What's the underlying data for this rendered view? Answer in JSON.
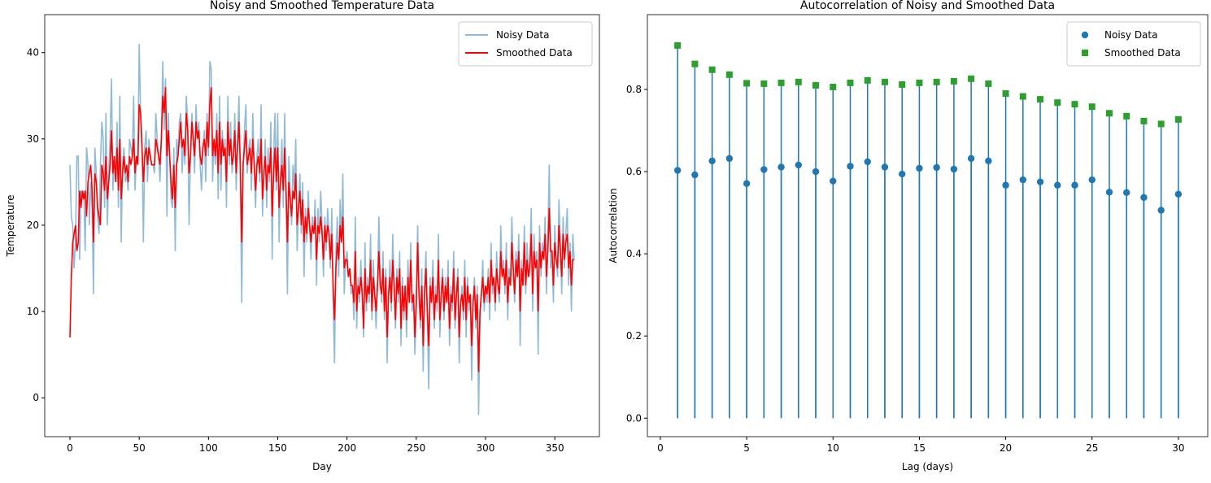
{
  "chart_data": [
    {
      "type": "line",
      "title": "Noisy and Smoothed Temperature Data",
      "x_label": "Day",
      "y_label": "Temperature",
      "x": [
        0,
        1,
        2,
        3,
        4,
        5,
        6,
        7,
        8,
        9,
        10,
        11,
        12,
        13,
        14,
        15,
        16,
        17,
        18,
        19,
        20,
        21,
        22,
        23,
        24,
        25,
        26,
        27,
        28,
        29,
        30,
        31,
        32,
        33,
        34,
        35,
        36,
        37,
        38,
        39,
        40,
        41,
        42,
        43,
        44,
        45,
        46,
        47,
        48,
        49,
        50,
        51,
        52,
        53,
        54,
        55,
        56,
        57,
        58,
        59,
        60,
        61,
        62,
        63,
        64,
        65,
        66,
        67,
        68,
        69,
        70,
        71,
        72,
        73,
        74,
        75,
        76,
        77,
        78,
        79,
        80,
        81,
        82,
        83,
        84,
        85,
        86,
        87,
        88,
        89,
        90,
        91,
        92,
        93,
        94,
        95,
        96,
        97,
        98,
        99,
        100,
        101,
        102,
        103,
        104,
        105,
        106,
        107,
        108,
        109,
        110,
        111,
        112,
        113,
        114,
        115,
        116,
        117,
        118,
        119,
        120,
        121,
        122,
        123,
        124,
        125,
        126,
        127,
        128,
        129,
        130,
        131,
        132,
        133,
        134,
        135,
        136,
        137,
        138,
        139,
        140,
        141,
        142,
        143,
        144,
        145,
        146,
        147,
        148,
        149,
        150,
        151,
        152,
        153,
        154,
        155,
        156,
        157,
        158,
        159,
        160,
        161,
        162,
        163,
        164,
        165,
        166,
        167,
        168,
        169,
        170,
        171,
        172,
        173,
        174,
        175,
        176,
        177,
        178,
        179,
        180,
        181,
        182,
        183,
        184,
        185,
        186,
        187,
        188,
        189,
        190,
        191,
        192,
        193,
        194,
        195,
        196,
        197,
        198,
        199,
        200,
        201,
        202,
        203,
        204,
        205,
        206,
        207,
        208,
        209,
        210,
        211,
        212,
        213,
        214,
        215,
        216,
        217,
        218,
        219,
        220,
        221,
        222,
        223,
        224,
        225,
        226,
        227,
        228,
        229,
        230,
        231,
        232,
        233,
        234,
        235,
        236,
        237,
        238,
        239,
        240,
        241,
        242,
        243,
        244,
        245,
        246,
        247,
        248,
        249,
        250,
        251,
        252,
        253,
        254,
        255,
        256,
        257,
        258,
        259,
        260,
        261,
        262,
        263,
        264,
        265,
        266,
        267,
        268,
        269,
        270,
        271,
        272,
        273,
        274,
        275,
        276,
        277,
        278,
        279,
        280,
        281,
        282,
        283,
        284,
        285,
        286,
        287,
        288,
        289,
        290,
        291,
        292,
        293,
        294,
        295,
        296,
        297,
        298,
        299,
        300,
        301,
        302,
        303,
        304,
        305,
        306,
        307,
        308,
        309,
        310,
        311,
        312,
        313,
        314,
        315,
        316,
        317,
        318,
        319,
        320,
        321,
        322,
        323,
        324,
        325,
        326,
        327,
        328,
        329,
        330,
        331,
        332,
        333,
        334,
        335,
        336,
        337,
        338,
        339,
        340,
        341,
        342,
        343,
        344,
        345,
        346,
        347,
        348,
        349,
        350,
        351,
        352,
        353,
        354,
        355,
        356,
        357,
        358,
        359,
        360,
        361,
        362,
        363,
        364
      ],
      "series": [
        {
          "name": "Noisy Data",
          "color": "#8fbbd9",
          "values": [
            27,
            21,
            20,
            15,
            18,
            28,
            28,
            16,
            24,
            23,
            24,
            17,
            29,
            27,
            20,
            25,
            22,
            12,
            29,
            26,
            21,
            19,
            27,
            32,
            30,
            22,
            33,
            20,
            26,
            30,
            37,
            24,
            28,
            25,
            32,
            22,
            35,
            18,
            27,
            29,
            25,
            26,
            24,
            30,
            29,
            28,
            35,
            24,
            28,
            27,
            41,
            33,
            30,
            18,
            29,
            31,
            25,
            30,
            28,
            27,
            27,
            26,
            33,
            30,
            28,
            25,
            30,
            39,
            31,
            37,
            21,
            33,
            28,
            23,
            22,
            29,
            17,
            30,
            28,
            32,
            33,
            26,
            30,
            27,
            35,
            32,
            20,
            28,
            33,
            30,
            26,
            34,
            30,
            32,
            27,
            24,
            29,
            31,
            25,
            33,
            28,
            39,
            38,
            25,
            30,
            27,
            33,
            23,
            35,
            24,
            31,
            28,
            30,
            22,
            35,
            27,
            32,
            26,
            28,
            33,
            24,
            30,
            35,
            25,
            11,
            27,
            31,
            34,
            26,
            29,
            30,
            24,
            33,
            27,
            22,
            28,
            30,
            25,
            34,
            21,
            26,
            30,
            22,
            29,
            25,
            32,
            16,
            28,
            33,
            24,
            33,
            18,
            26,
            30,
            22,
            33,
            23,
            12,
            28,
            24,
            20,
            27,
            24,
            30,
            17,
            22,
            26,
            19,
            25,
            14,
            22,
            18,
            24,
            20,
            16,
            21,
            19,
            23,
            13,
            22,
            18,
            24,
            20,
            14,
            21,
            17,
            22,
            19,
            15,
            22,
            11,
            4,
            17,
            21,
            14,
            23,
            18,
            26,
            12,
            16,
            17,
            14,
            15,
            12,
            13,
            9,
            21,
            8,
            14,
            11,
            16,
            12,
            7,
            18,
            10,
            14,
            11,
            19,
            9,
            16,
            12,
            8,
            13,
            21,
            14,
            11,
            17,
            9,
            15,
            4,
            12,
            16,
            10,
            19,
            13,
            8,
            15,
            11,
            17,
            6,
            14,
            9,
            13,
            7,
            16,
            11,
            18,
            10,
            12,
            5,
            10,
            20,
            12,
            8,
            15,
            3,
            13,
            17,
            9,
            1,
            14,
            11,
            16,
            8,
            13,
            10,
            19,
            7,
            12,
            15,
            9,
            14,
            11,
            16,
            6,
            13,
            10,
            17,
            8,
            12,
            15,
            4,
            11,
            13,
            9,
            16,
            7,
            14,
            10,
            12,
            2,
            11,
            14,
            8,
            13,
            -2,
            9,
            12,
            16,
            10,
            13,
            11,
            15,
            9,
            18,
            12,
            14,
            10,
            17,
            13,
            11,
            20,
            14,
            16,
            12,
            18,
            9,
            15,
            13,
            21,
            15,
            11,
            17,
            14,
            19,
            6,
            16,
            13,
            20,
            12,
            18,
            14,
            16,
            22,
            10,
            19,
            15,
            17,
            5,
            20,
            14,
            18,
            16,
            21,
            12,
            19,
            27,
            15,
            17,
            11,
            20,
            16,
            14,
            23,
            18,
            12,
            21,
            15,
            19,
            22,
            13,
            18,
            10,
            19,
            16
          ]
        },
        {
          "name": "Smoothed Data",
          "color": "#ff0000",
          "values": [
            7,
            14,
            18,
            19,
            20,
            17,
            18,
            24,
            22,
            24,
            23,
            24,
            21,
            25,
            26,
            27,
            24,
            18,
            26,
            25,
            22,
            21,
            20,
            27,
            26,
            24,
            28,
            23,
            25,
            27,
            31,
            26,
            28,
            25,
            29,
            24,
            30,
            23,
            26,
            28,
            26,
            27,
            25,
            28,
            27,
            28,
            30,
            26,
            28,
            27,
            34,
            33,
            29,
            25,
            28,
            29,
            27,
            29,
            28,
            27,
            27,
            27,
            30,
            29,
            28,
            27,
            30,
            35,
            33,
            36,
            28,
            31,
            28,
            25,
            23,
            27,
            22,
            27,
            28,
            30,
            32,
            29,
            30,
            28,
            33,
            31,
            26,
            28,
            32,
            30,
            28,
            32,
            30,
            31,
            28,
            27,
            29,
            30,
            28,
            32,
            29,
            34,
            36,
            28,
            30,
            28,
            31,
            26,
            32,
            27,
            30,
            28,
            29,
            25,
            32,
            28,
            30,
            27,
            28,
            31,
            26,
            29,
            32,
            27,
            18,
            27,
            29,
            31,
            27,
            28,
            29,
            26,
            30,
            27,
            24,
            27,
            28,
            26,
            30,
            23,
            26,
            28,
            24,
            27,
            26,
            29,
            21,
            26,
            29,
            25,
            29,
            22,
            25,
            27,
            24,
            29,
            24,
            18,
            25,
            23,
            21,
            24,
            23,
            26,
            20,
            22,
            24,
            20,
            23,
            18,
            21,
            19,
            22,
            20,
            18,
            20,
            19,
            21,
            16,
            20,
            19,
            21,
            19,
            16,
            20,
            18,
            20,
            19,
            16,
            19,
            13,
            9,
            15,
            18,
            16,
            20,
            18,
            21,
            15,
            16,
            16,
            14,
            15,
            13,
            13,
            11,
            17,
            10,
            13,
            12,
            14,
            12,
            8,
            15,
            11,
            13,
            12,
            16,
            10,
            14,
            12,
            10,
            13,
            17,
            13,
            12,
            15,
            10,
            14,
            7,
            12,
            14,
            11,
            16,
            13,
            9,
            14,
            12,
            15,
            8,
            13,
            10,
            13,
            9,
            14,
            11,
            16,
            11,
            12,
            7,
            11,
            18,
            12,
            9,
            13,
            6,
            12,
            15,
            10,
            6,
            13,
            11,
            14,
            9,
            12,
            11,
            16,
            9,
            12,
            14,
            10,
            13,
            11,
            14,
            8,
            12,
            11,
            15,
            9,
            12,
            14,
            7,
            11,
            12,
            10,
            14,
            9,
            13,
            11,
            12,
            6,
            11,
            13,
            9,
            12,
            3,
            10,
            12,
            14,
            11,
            13,
            12,
            14,
            11,
            16,
            13,
            14,
            11,
            15,
            13,
            12,
            17,
            14,
            15,
            13,
            16,
            11,
            14,
            13,
            18,
            15,
            12,
            16,
            14,
            17,
            10,
            15,
            13,
            18,
            13,
            16,
            14,
            15,
            19,
            12,
            17,
            15,
            16,
            10,
            18,
            15,
            17,
            16,
            19,
            14,
            17,
            22,
            17,
            17,
            13,
            18,
            16,
            15,
            20,
            17,
            14,
            19,
            16,
            18,
            19,
            15,
            17,
            13,
            16,
            16
          ]
        }
      ],
      "xlim": [
        -18.2,
        382.2
      ],
      "ylim": [
        -4.5,
        44.4
      ],
      "xticks": [
        0,
        50,
        100,
        150,
        200,
        250,
        300,
        350
      ],
      "yticks": [
        0,
        10,
        20,
        30,
        40
      ],
      "legend": "upper right"
    },
    {
      "type": "stem",
      "title": "Autocorrelation of Noisy and Smoothed Data",
      "x_label": "Lag (days)",
      "y_label": "Autocorrelation",
      "x": [
        1,
        2,
        3,
        4,
        5,
        6,
        7,
        8,
        9,
        10,
        11,
        12,
        13,
        14,
        15,
        16,
        17,
        18,
        19,
        20,
        21,
        22,
        23,
        24,
        25,
        26,
        27,
        28,
        29,
        30
      ],
      "stem_color": "#1f77b4",
      "series": [
        {
          "name": "Noisy Data",
          "color": "#1f77b4",
          "marker": "circle",
          "values": [
            0.603,
            0.592,
            0.626,
            0.632,
            0.571,
            0.605,
            0.611,
            0.616,
            0.6,
            0.577,
            0.613,
            0.624,
            0.611,
            0.594,
            0.608,
            0.61,
            0.606,
            0.632,
            0.626,
            0.567,
            0.58,
            0.575,
            0.567,
            0.567,
            0.58,
            0.55,
            0.549,
            0.537,
            0.506,
            0.545
          ]
        },
        {
          "name": "Smoothed Data",
          "color": "#2ca02c",
          "marker": "square",
          "values": [
            0.907,
            0.862,
            0.848,
            0.836,
            0.815,
            0.814,
            0.816,
            0.818,
            0.81,
            0.806,
            0.816,
            0.822,
            0.818,
            0.812,
            0.816,
            0.818,
            0.82,
            0.826,
            0.814,
            0.79,
            0.783,
            0.776,
            0.768,
            0.764,
            0.758,
            0.742,
            0.735,
            0.723,
            0.716,
            0.727
          ]
        }
      ],
      "xlim": [
        -0.75,
        31.7
      ],
      "ylim": [
        -0.045,
        0.982
      ],
      "xticks": [
        0,
        5,
        10,
        15,
        20,
        25,
        30
      ],
      "yticks": [
        {
          "value": 0,
          "label": "0.0"
        },
        0.2,
        0.4,
        0.6,
        0.8
      ],
      "legend": "upper right"
    }
  ]
}
